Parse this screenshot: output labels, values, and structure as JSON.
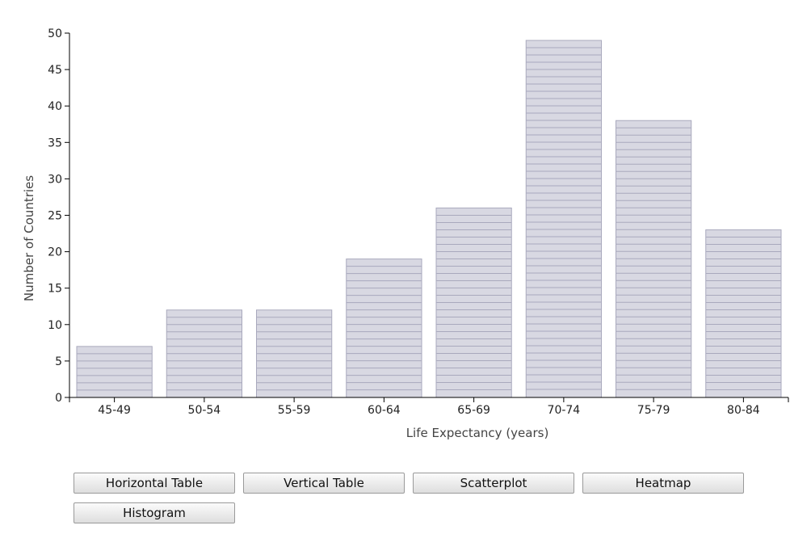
{
  "chart_data": {
    "type": "bar",
    "categories": [
      "45-49",
      "50-54",
      "55-59",
      "60-64",
      "65-69",
      "70-74",
      "75-79",
      "80-84"
    ],
    "values": [
      7,
      12,
      12,
      19,
      26,
      49,
      38,
      23
    ],
    "xlabel": "Life Expectancy (years)",
    "ylabel": "Number of Countries",
    "ylim": [
      0,
      50
    ],
    "yticks": [
      0,
      5,
      10,
      15,
      20,
      25,
      30,
      35,
      40,
      45,
      50
    ],
    "grid": false,
    "bar_color": "#d8d8e2",
    "bar_outline_color": "#a9a9bd"
  },
  "buttons": {
    "horizontal_table": "Horizontal Table",
    "vertical_table": "Vertical Table",
    "scatterplot": "Scatterplot",
    "heatmap": "Heatmap",
    "histogram": "Histogram"
  }
}
